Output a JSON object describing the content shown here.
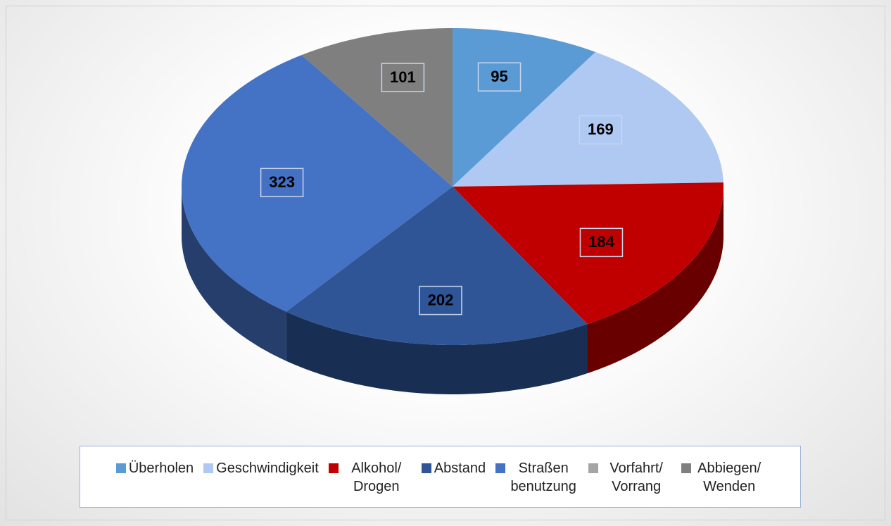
{
  "chart_data": {
    "type": "pie3d",
    "categories": [
      "Überholen",
      "Geschwindigkeit",
      "Alkohol/ Drogen",
      "Abstand",
      "Straßen benutzung",
      "Vorfahrt/ Vorrang",
      "Abbiegen/ Wenden"
    ],
    "values": [
      95,
      169,
      184,
      202,
      323,
      0,
      101
    ],
    "colors": [
      "#5b9bd5",
      "#b0c9f3",
      "#c00000",
      "#2f5597",
      "#4472c4",
      "#a5a5a5",
      "#7f7f7f"
    ],
    "legend": "bottom"
  }
}
